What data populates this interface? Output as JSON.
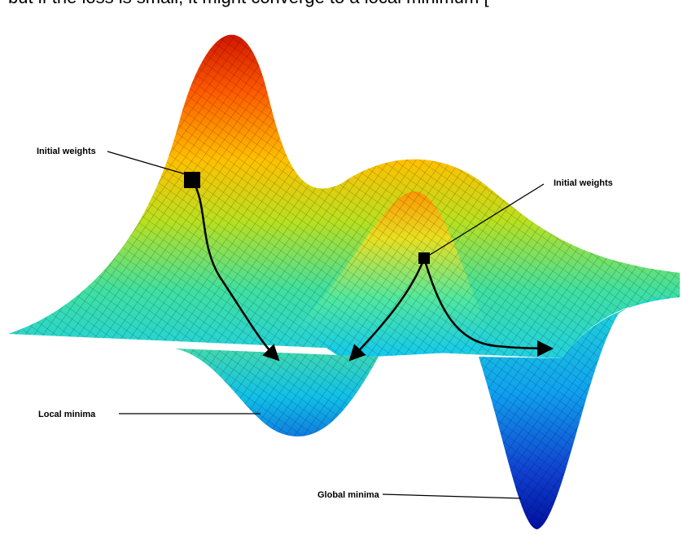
{
  "header": {
    "text": "but if the loss is small, it might converge to a local minimum ["
  },
  "labels": {
    "initial_weights_left": "Initial weights",
    "initial_weights_right": "Initial weights",
    "local_minima": "Local minima",
    "global_minima": "Global minima"
  }
}
